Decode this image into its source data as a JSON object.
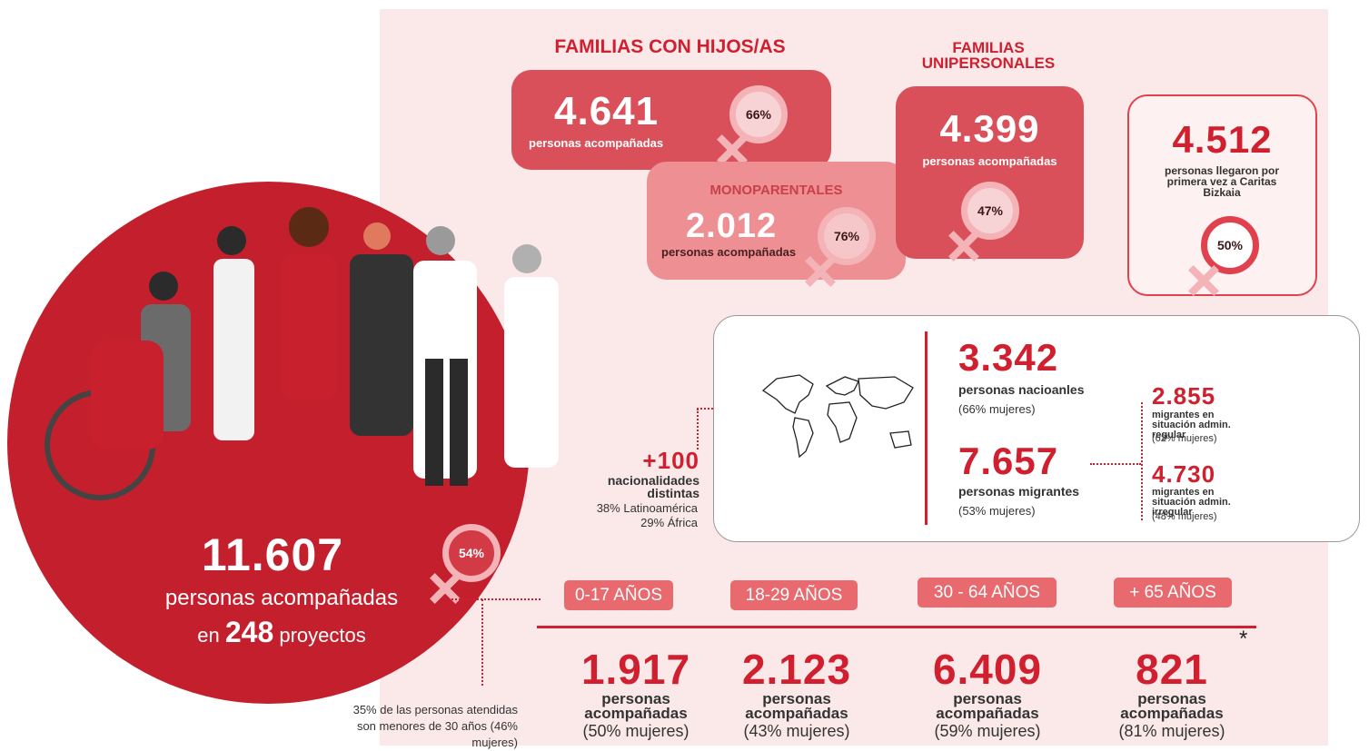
{
  "main": {
    "value": "11.607",
    "label": "personas acompañadas",
    "projects_prefix": "en",
    "projects": "248",
    "projects_suffix": "proyectos",
    "women": "54%"
  },
  "note": "35%  de las personas atendidas son menores de 30 años (46% mujeres)",
  "families_children": {
    "title": "FAMILIAS CON HIJOS/AS",
    "value": "4.641",
    "label": "personas acompañadas",
    "women": "66%"
  },
  "single_parent": {
    "title": "MONOPARENTALES",
    "value": "2.012",
    "label": "personas acompañadas",
    "women": "76%"
  },
  "single_person": {
    "title": "FAMILIAS UNIPERSONALES",
    "value": "4.399",
    "label": "personas acompañadas",
    "women": "47%"
  },
  "first_time": {
    "value": "4.512",
    "label": "personas llegaron por primera vez a Caritas Bizkaia",
    "women": "50%"
  },
  "nationalities": {
    "value": "+100",
    "label": "nacionalidades distintas",
    "lines": [
      "38% Latinoamérica",
      "29% África"
    ]
  },
  "origin": {
    "national": {
      "value": "3.342",
      "label": "personas nacioanles",
      "women": "(66% mujeres)"
    },
    "migrants": {
      "value": "7.657",
      "label": "personas migrantes",
      "women": "(53% mujeres)"
    },
    "regular": {
      "value": "2.855",
      "label": "migrantes en situación admin. regular",
      "women": "(62% mujeres)"
    },
    "irregular": {
      "value": "4.730",
      "label": "migrantes en situación admin. irregular",
      "women": "(48% mujeres)"
    }
  },
  "ages": [
    {
      "range": "0-17 AÑOS",
      "value": "1.917",
      "label": "personas acompañadas",
      "women": "(50% mujeres)"
    },
    {
      "range": "18-29  AÑOS",
      "value": "2.123",
      "label": "personas acompañadas",
      "women": "(43% mujeres)"
    },
    {
      "range": "30 - 64  AÑOS",
      "value": "6.409",
      "label": "personas acompañadas",
      "women": "(59% mujeres)"
    },
    {
      "range": "+ 65  AÑOS",
      "value": "821",
      "label": "personas acompañadas",
      "women": "(81% mujeres)"
    }
  ],
  "asterisk": "*"
}
